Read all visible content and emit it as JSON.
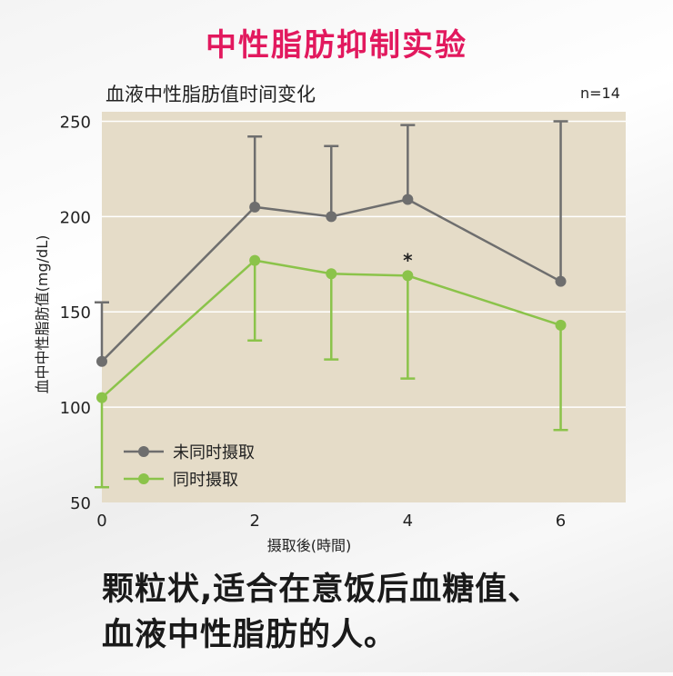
{
  "headline": "中性脂肪抑制实验",
  "caption": {
    "line1": "颗粒状,适合在意饭后血糖值、",
    "line2": "血液中性脂肪的人。"
  },
  "chart_data": {
    "type": "line",
    "title": "血液中性脂肪值时间变化",
    "sample_size": "n=14",
    "xlabel": "摄取後(時間)",
    "ylabel": "血中中性脂肪值(mg/dL)",
    "x": [
      0,
      2,
      3,
      4,
      6
    ],
    "x_ticks": [
      "0",
      "2",
      "4",
      "6"
    ],
    "x_tick_values": [
      0,
      2,
      4,
      6
    ],
    "y_ticks": [
      "50",
      "100",
      "150",
      "200",
      "250"
    ],
    "y_tick_values": [
      50,
      100,
      150,
      200,
      250
    ],
    "xlim": [
      0,
      6.85
    ],
    "ylim": [
      50,
      255
    ],
    "grid": true,
    "legend_position": "bottom-left",
    "annotation": {
      "text": "*",
      "x": 4
    },
    "background_color": "#e5dcc8",
    "series": [
      {
        "name": "未同时摄取",
        "color": "#6e6e6e",
        "values": [
          124,
          205,
          200,
          209,
          166
        ],
        "error_upper": [
          155,
          242,
          237,
          248,
          250
        ],
        "error_lower": [
          124,
          205,
          200,
          209,
          166
        ]
      },
      {
        "name": "同时摄取",
        "color": "#8bc34a",
        "values": [
          105,
          177,
          170,
          169,
          143
        ],
        "error_upper": [
          105,
          177,
          170,
          169,
          143
        ],
        "error_lower": [
          58,
          135,
          125,
          115,
          88
        ]
      }
    ]
  }
}
